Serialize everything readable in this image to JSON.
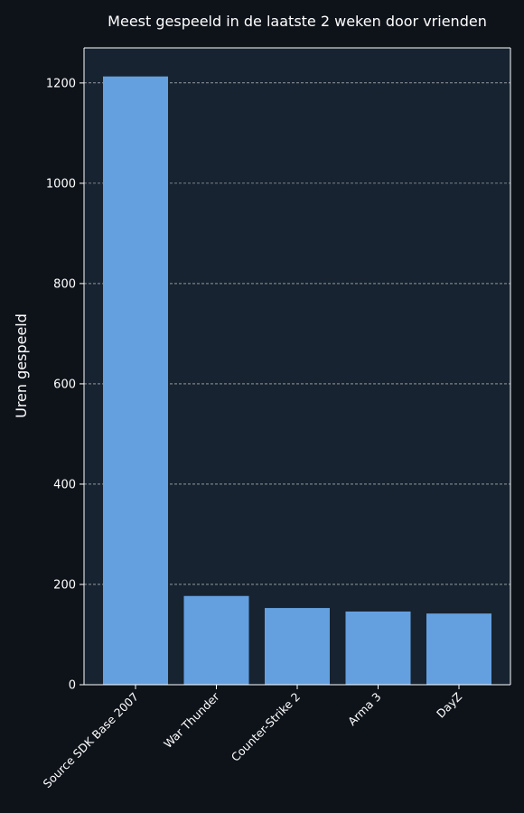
{
  "colors": {
    "page_background": "#0e131a",
    "plot_background": "#172330",
    "bar": "#64a0e0",
    "text": "#ffffff"
  },
  "chart_data": {
    "type": "bar",
    "title": "Meest gespeeld in de laatste 2 weken door vrienden",
    "xlabel": "",
    "ylabel": "Uren gespeeld",
    "categories": [
      "Source SDK Base 2007",
      "War Thunder",
      "Counter-Strike 2",
      "Arma 3",
      "DayZ"
    ],
    "values": [
      1213,
      177,
      153,
      146,
      142
    ],
    "ylim": [
      0,
      1270
    ],
    "yticks": [
      0,
      200,
      400,
      600,
      800,
      1000,
      1200
    ],
    "grid": true,
    "grid_axis": "y"
  }
}
